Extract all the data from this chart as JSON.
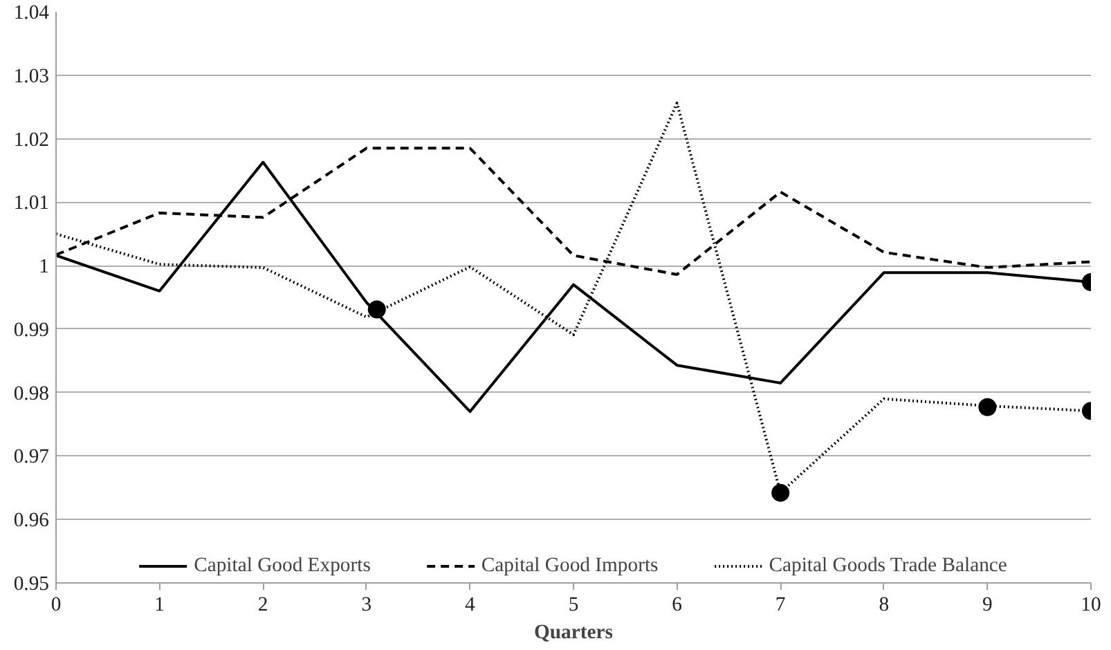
{
  "chart_data": {
    "type": "line",
    "xlabel": "Quarters",
    "x": [
      0,
      1,
      2,
      3,
      4,
      5,
      6,
      7,
      8,
      9,
      10
    ],
    "xlim": [
      0,
      10
    ],
    "xticks": [
      0,
      1,
      2,
      3,
      4,
      5,
      6,
      7,
      8,
      9,
      10
    ],
    "ylim": [
      0.95,
      1.04
    ],
    "yticks": [
      0.95,
      0.96,
      0.97,
      0.98,
      0.99,
      1,
      1.01,
      1.02,
      1.03,
      1.04
    ],
    "grid": "y",
    "legend": "bottom",
    "series": [
      {
        "name": "Capital Good Exports",
        "color": "#000000",
        "line_style": "solid",
        "values": [
          1.0016,
          0.996,
          1.0163,
          0.9942,
          0.977,
          0.997,
          0.9843,
          0.9815,
          0.9989,
          0.9989,
          0.9974
        ]
      },
      {
        "name": "Capital Good Imports",
        "color": "#000000",
        "line_style": "dashed",
        "values": [
          1.0017,
          1.0083,
          1.0076,
          1.0185,
          1.0185,
          1.0016,
          0.9986,
          1.0116,
          1.0021,
          0.9997,
          1.0006
        ]
      },
      {
        "name": "Capital Goods Trade Balance",
        "color": "#000000",
        "line_style": "dotted",
        "values": [
          1.005,
          1.0002,
          0.9997,
          0.9919,
          0.9998,
          0.9891,
          1.0256,
          0.9642,
          0.979,
          0.9779,
          0.9771
        ]
      },
      {
        "type": "scatter",
        "color": "#000000",
        "marker": "circle",
        "x": [
          3.1,
          7,
          9,
          10,
          10
        ],
        "values": [
          0.9931,
          0.9642,
          0.9777,
          0.9771,
          0.9974
        ]
      }
    ]
  }
}
